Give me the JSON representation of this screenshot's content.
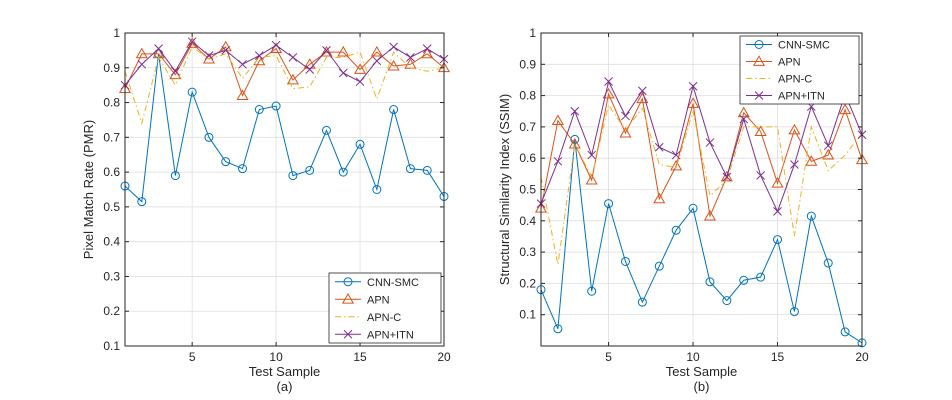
{
  "chart_data": [
    {
      "type": "line",
      "caption": "(a)",
      "xlabel": "Test Sample",
      "ylabel": "Pixel Match Rate (PMR)",
      "xlim": [
        1,
        20
      ],
      "ylim": [
        0.1,
        1.0
      ],
      "xticks": [
        5,
        10,
        15,
        20
      ],
      "yticks": [
        0.1,
        0.2,
        0.3,
        0.4,
        0.5,
        0.6,
        0.7,
        0.8,
        0.9,
        1.0
      ],
      "grid": true,
      "legend_position": "bottom-right",
      "x": [
        1,
        2,
        3,
        4,
        5,
        6,
        7,
        8,
        9,
        10,
        11,
        12,
        13,
        14,
        15,
        16,
        17,
        18,
        19,
        20
      ],
      "series": [
        {
          "name": "CNN-SMC",
          "color": "#0072BD",
          "marker": "circle",
          "dash": "solid",
          "values": [
            0.56,
            0.515,
            0.94,
            0.59,
            0.83,
            0.7,
            0.63,
            0.61,
            0.78,
            0.79,
            0.59,
            0.605,
            0.72,
            0.6,
            0.68,
            0.55,
            0.78,
            0.61,
            0.605,
            0.53
          ]
        },
        {
          "name": "APN",
          "color": "#D95319",
          "marker": "triangle",
          "dash": "solid",
          "values": [
            0.84,
            0.94,
            0.94,
            0.88,
            0.97,
            0.925,
            0.96,
            0.82,
            0.92,
            0.955,
            0.865,
            0.91,
            0.945,
            0.945,
            0.895,
            0.945,
            0.905,
            0.91,
            0.94,
            0.9
          ]
        },
        {
          "name": "APN-C",
          "color": "#EDB120",
          "marker": "none",
          "dash": "dashdot",
          "values": [
            0.89,
            0.74,
            0.93,
            0.85,
            0.96,
            0.925,
            0.94,
            0.87,
            0.93,
            0.935,
            0.84,
            0.845,
            0.93,
            0.93,
            0.945,
            0.81,
            0.945,
            0.9,
            0.89,
            0.9
          ]
        },
        {
          "name": "APN+ITN",
          "color": "#7E2F8E",
          "marker": "x",
          "dash": "solid",
          "values": [
            0.85,
            0.91,
            0.955,
            0.89,
            0.975,
            0.935,
            0.95,
            0.91,
            0.935,
            0.965,
            0.93,
            0.895,
            0.95,
            0.885,
            0.86,
            0.92,
            0.96,
            0.93,
            0.955,
            0.925
          ]
        }
      ]
    },
    {
      "type": "line",
      "caption": "(b)",
      "xlabel": "Test Sample",
      "ylabel": "Structural Similarity Index (SSIM)",
      "xlim": [
        1,
        20
      ],
      "ylim": [
        0,
        1.0
      ],
      "xticks": [
        5,
        10,
        15,
        20
      ],
      "yticks": [
        0.1,
        0.2,
        0.3,
        0.4,
        0.5,
        0.6,
        0.7,
        0.8,
        0.9,
        1.0
      ],
      "grid": true,
      "legend_position": "top-right",
      "x": [
        1,
        2,
        3,
        4,
        5,
        6,
        7,
        8,
        9,
        10,
        11,
        12,
        13,
        14,
        15,
        16,
        17,
        18,
        19,
        20
      ],
      "series": [
        {
          "name": "CNN-SMC",
          "color": "#0072BD",
          "marker": "circle",
          "dash": "solid",
          "values": [
            0.18,
            0.055,
            0.66,
            0.175,
            0.455,
            0.27,
            0.14,
            0.255,
            0.37,
            0.44,
            0.205,
            0.145,
            0.21,
            0.22,
            0.34,
            0.11,
            0.415,
            0.265,
            0.045,
            0.01
          ]
        },
        {
          "name": "APN",
          "color": "#D95319",
          "marker": "triangle",
          "dash": "solid",
          "values": [
            0.44,
            0.72,
            0.645,
            0.53,
            0.805,
            0.68,
            0.79,
            0.47,
            0.575,
            0.775,
            0.415,
            0.54,
            0.745,
            0.685,
            0.52,
            0.69,
            0.59,
            0.61,
            0.755,
            0.595
          ]
        },
        {
          "name": "APN-C",
          "color": "#EDB120",
          "marker": "none",
          "dash": "dashdot",
          "values": [
            0.54,
            0.26,
            0.645,
            0.54,
            0.77,
            0.69,
            0.76,
            0.58,
            0.57,
            0.75,
            0.48,
            0.53,
            0.7,
            0.7,
            0.7,
            0.35,
            0.7,
            0.56,
            0.61,
            0.68
          ]
        },
        {
          "name": "APN+ITN",
          "color": "#7E2F8E",
          "marker": "x",
          "dash": "solid",
          "values": [
            0.455,
            0.59,
            0.75,
            0.61,
            0.845,
            0.735,
            0.815,
            0.635,
            0.61,
            0.83,
            0.65,
            0.54,
            0.725,
            0.545,
            0.43,
            0.58,
            0.765,
            0.64,
            0.805,
            0.675
          ]
        }
      ]
    }
  ]
}
